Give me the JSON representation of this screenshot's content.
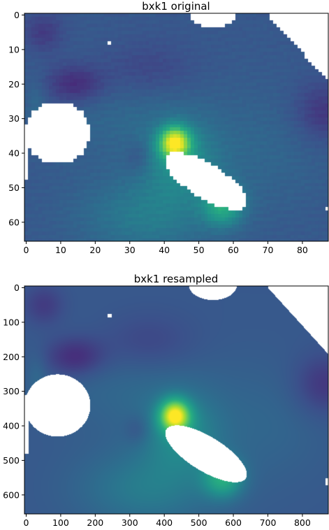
{
  "chart_data": [
    {
      "type": "heatmap",
      "title": "bxk1 original",
      "xlim": [
        -0.5,
        87.5
      ],
      "ylim": [
        65.5,
        -0.5
      ],
      "x_ticks": [
        0,
        10,
        20,
        30,
        40,
        50,
        60,
        70,
        80
      ],
      "y_ticks": [
        0,
        10,
        20,
        30,
        40,
        50,
        60
      ],
      "colormap": "viridis",
      "grid": false,
      "grid_size": [
        88,
        66
      ],
      "nan_color": "#ffffff"
    },
    {
      "type": "heatmap",
      "title": "bxk1 resampled",
      "xlim": [
        -5,
        875
      ],
      "ylim": [
        655,
        -5
      ],
      "x_ticks": [
        0,
        100,
        200,
        300,
        400,
        500,
        600,
        700,
        800
      ],
      "y_ticks": [
        0,
        100,
        200,
        300,
        400,
        500,
        600
      ],
      "colormap": "viridis",
      "grid": false,
      "grid_size": [
        880,
        660
      ],
      "nan_color": "#ffffff"
    }
  ],
  "colors": {
    "viridis_dark": "#440154",
    "viridis_mid": "#21918c",
    "viridis_bright": "#fde725"
  }
}
